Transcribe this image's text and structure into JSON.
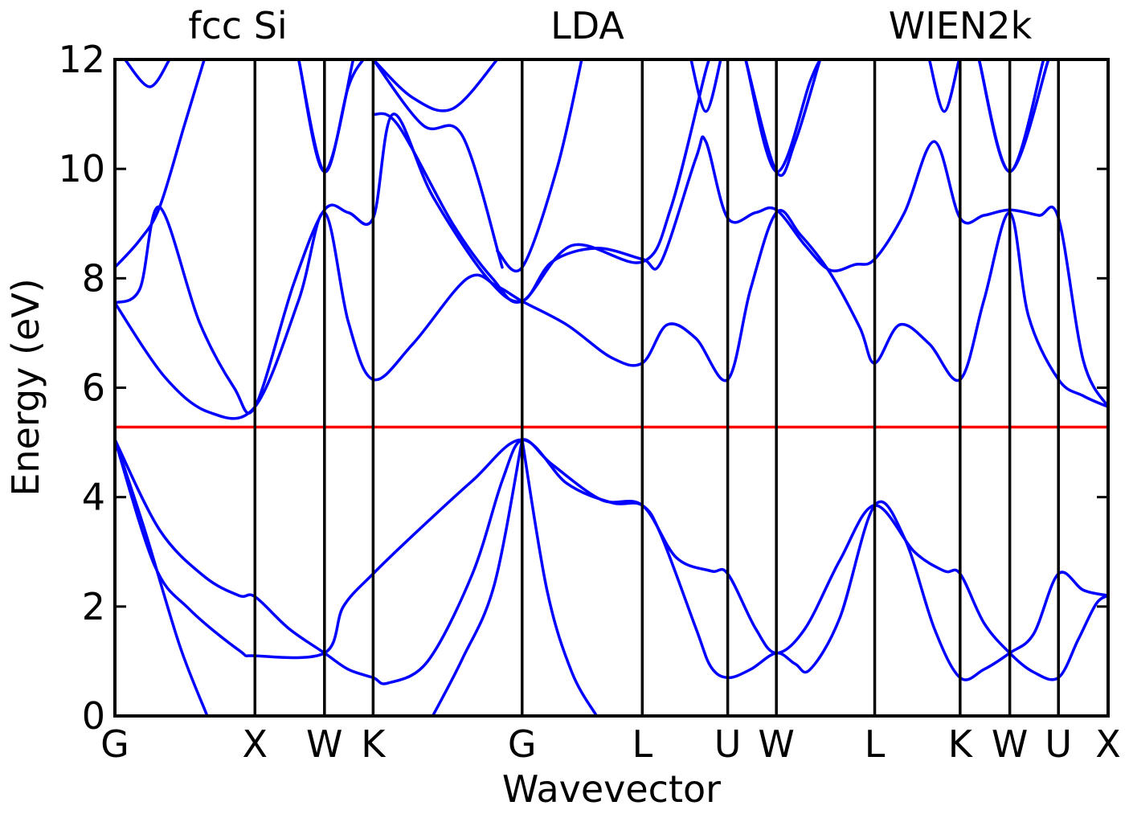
{
  "chart_data": {
    "type": "line",
    "titles": {
      "left": "fcc Si",
      "center": "LDA",
      "right": "WIEN2k"
    },
    "xlabel": "Wavevector",
    "ylabel": "Energy (eV)",
    "ylim": [
      0,
      12
    ],
    "xlim": [
      0,
      10
    ],
    "y_ticks": [
      0,
      2,
      4,
      6,
      8,
      10,
      12
    ],
    "y_tick_labels": [
      "0",
      "2",
      "4",
      "6",
      "8",
      "10",
      "12"
    ],
    "k_points": [
      {
        "label": "G",
        "x": 0
      },
      {
        "label": "X",
        "x": 1.41
      },
      {
        "label": "W",
        "x": 2.11
      },
      {
        "label": "K",
        "x": 2.6
      },
      {
        "label": "G",
        "x": 4.1
      },
      {
        "label": "L",
        "x": 5.31
      },
      {
        "label": "U",
        "x": 6.17
      },
      {
        "label": "W",
        "x": 6.66
      },
      {
        "label": "L",
        "x": 7.65
      },
      {
        "label": "K",
        "x": 8.51
      },
      {
        "label": "W",
        "x": 9.01
      },
      {
        "label": "U",
        "x": 9.5
      },
      {
        "label": "X",
        "x": 10
      }
    ],
    "fermi_level": 5.28,
    "colors": {
      "bands": "#0000ff",
      "fermi": "#ff0000",
      "kline": "#000000"
    },
    "grid": false,
    "series": [
      {
        "values": [
          [
            0,
            5.05
          ],
          [
            0.3,
            3.4
          ],
          [
            0.65,
            1.3
          ],
          [
            0.93,
            0
          ]
        ]
      },
      {
        "values": [
          [
            4.1,
            5.05
          ],
          [
            3.82,
            2.4
          ],
          [
            3.5,
            1.05
          ],
          [
            3.2,
            0
          ]
        ]
      },
      {
        "values": [
          [
            4.1,
            5.05
          ],
          [
            4.35,
            2.3
          ],
          [
            4.6,
            0.8
          ],
          [
            4.85,
            0
          ]
        ]
      },
      {
        "values": [
          [
            0,
            5.05
          ],
          [
            0.45,
            3.4
          ],
          [
            0.9,
            2.55
          ],
          [
            1.25,
            2.2
          ],
          [
            1.41,
            2.18
          ],
          [
            1.75,
            1.6
          ],
          [
            2.11,
            1.15
          ],
          [
            2.35,
            0.85
          ],
          [
            2.6,
            0.7
          ],
          [
            2.75,
            0.6
          ],
          [
            3.15,
            1.0
          ],
          [
            3.6,
            2.6
          ],
          [
            3.9,
            4.3
          ],
          [
            4.1,
            5.05
          ],
          [
            4.4,
            4.6
          ],
          [
            4.9,
            3.95
          ],
          [
            5.31,
            3.85
          ],
          [
            5.65,
            2.9
          ],
          [
            6.0,
            2.65
          ],
          [
            6.17,
            2.6
          ],
          [
            6.45,
            1.6
          ],
          [
            6.66,
            1.15
          ],
          [
            6.95,
            1.6
          ],
          [
            7.3,
            2.85
          ],
          [
            7.65,
            3.85
          ],
          [
            8.05,
            3.0
          ],
          [
            8.35,
            2.65
          ],
          [
            8.51,
            2.6
          ],
          [
            8.75,
            1.7
          ],
          [
            9.01,
            1.15
          ],
          [
            9.25,
            0.8
          ],
          [
            9.5,
            0.7
          ],
          [
            9.7,
            1.4
          ],
          [
            9.88,
            2.05
          ],
          [
            10,
            2.2
          ]
        ]
      },
      {
        "values": [
          [
            0,
            5.05
          ],
          [
            0.4,
            2.75
          ],
          [
            0.75,
            1.95
          ],
          [
            1.25,
            1.2
          ],
          [
            1.41,
            1.1
          ],
          [
            2.11,
            1.15
          ],
          [
            2.3,
            2.0
          ],
          [
            2.6,
            2.6
          ],
          [
            3.0,
            3.3
          ],
          [
            3.6,
            4.3
          ],
          [
            4.1,
            5.05
          ],
          [
            4.55,
            4.25
          ],
          [
            5.0,
            3.9
          ],
          [
            5.31,
            3.85
          ],
          [
            5.5,
            3.3
          ],
          [
            5.85,
            1.6
          ],
          [
            6.0,
            0.9
          ],
          [
            6.17,
            0.7
          ],
          [
            6.4,
            0.85
          ],
          [
            6.66,
            1.15
          ],
          [
            6.85,
            0.95
          ],
          [
            7.0,
            0.85
          ],
          [
            7.3,
            1.8
          ],
          [
            7.65,
            3.85
          ],
          [
            7.95,
            3.25
          ],
          [
            8.25,
            1.6
          ],
          [
            8.51,
            0.7
          ],
          [
            8.75,
            0.85
          ],
          [
            9.01,
            1.15
          ],
          [
            9.25,
            1.5
          ],
          [
            9.5,
            2.6
          ],
          [
            9.75,
            2.3
          ],
          [
            10,
            2.2
          ]
        ]
      },
      {
        "values": [
          [
            0,
            7.55
          ],
          [
            0.5,
            6.2
          ],
          [
            0.95,
            5.55
          ],
          [
            1.41,
            5.65
          ],
          [
            1.85,
            7.6
          ],
          [
            2.11,
            9.2
          ],
          [
            2.35,
            7.2
          ],
          [
            2.6,
            6.15
          ],
          [
            3.0,
            6.8
          ],
          [
            3.55,
            8.0
          ],
          [
            3.85,
            7.85
          ],
          [
            4.1,
            7.58
          ],
          [
            4.55,
            7.15
          ],
          [
            5.0,
            6.55
          ],
          [
            5.31,
            6.45
          ],
          [
            5.56,
            7.15
          ],
          [
            5.85,
            6.9
          ],
          [
            6.17,
            6.15
          ],
          [
            6.4,
            7.8
          ],
          [
            6.66,
            9.2
          ],
          [
            6.9,
            8.8
          ],
          [
            7.2,
            8.1
          ],
          [
            7.5,
            7.1
          ],
          [
            7.65,
            6.45
          ],
          [
            7.9,
            7.15
          ],
          [
            8.2,
            6.8
          ],
          [
            8.51,
            6.15
          ],
          [
            8.75,
            7.6
          ],
          [
            9.01,
            9.2
          ],
          [
            9.2,
            7.3
          ],
          [
            9.5,
            6.15
          ],
          [
            9.75,
            5.85
          ],
          [
            10,
            5.65
          ]
        ]
      },
      {
        "values": [
          [
            0,
            7.55
          ],
          [
            0.25,
            7.8
          ],
          [
            0.45,
            9.3
          ],
          [
            0.85,
            7.2
          ],
          [
            1.2,
            6.0
          ],
          [
            1.41,
            5.65
          ],
          [
            1.8,
            7.9
          ],
          [
            2.11,
            9.25
          ],
          [
            2.35,
            9.2
          ],
          [
            2.6,
            9.1
          ],
          [
            2.8,
            11.0
          ],
          [
            3.2,
            9.5
          ],
          [
            3.75,
            8.0
          ],
          [
            4.1,
            7.58
          ],
          [
            4.4,
            8.3
          ],
          [
            4.85,
            8.55
          ],
          [
            5.31,
            8.35
          ],
          [
            5.5,
            8.3
          ],
          [
            5.85,
            10.2
          ],
          [
            5.95,
            10.5
          ],
          [
            6.17,
            9.1
          ],
          [
            6.45,
            9.2
          ],
          [
            6.66,
            9.25
          ],
          [
            6.95,
            8.6
          ],
          [
            7.2,
            8.15
          ],
          [
            7.45,
            8.25
          ],
          [
            7.65,
            8.35
          ],
          [
            7.95,
            9.2
          ],
          [
            8.25,
            10.5
          ],
          [
            8.51,
            9.1
          ],
          [
            8.75,
            9.15
          ],
          [
            9.01,
            9.25
          ],
          [
            9.3,
            9.15
          ],
          [
            9.5,
            9.1
          ],
          [
            9.75,
            6.5
          ],
          [
            10,
            5.65
          ]
        ]
      },
      {
        "values": [
          [
            0,
            8.2
          ],
          [
            0.25,
            8.7
          ],
          [
            0.45,
            9.3
          ],
          [
            0.7,
            10.8
          ],
          [
            0.9,
            12
          ]
        ]
      },
      {
        "values": [
          [
            2.6,
            11.0
          ],
          [
            2.85,
            10.8
          ],
          [
            3.4,
            9.0
          ],
          [
            3.8,
            8.0
          ],
          [
            4.1,
            7.58
          ],
          [
            4.6,
            8.6
          ],
          [
            5.31,
            8.3
          ],
          [
            5.6,
            9.3
          ],
          [
            5.95,
            11.8
          ],
          [
            6.0,
            12
          ]
        ]
      },
      {
        "values": [
          [
            3.85,
            8.5
          ],
          [
            4.1,
            8.2
          ],
          [
            4.45,
            10.0
          ],
          [
            4.7,
            12
          ]
        ]
      },
      {
        "values": [
          [
            1.85,
            12
          ],
          [
            2.11,
            9.95
          ],
          [
            2.35,
            11.5
          ],
          [
            2.5,
            12
          ]
        ]
      },
      {
        "values": [
          [
            1.85,
            12
          ],
          [
            2.11,
            9.95
          ],
          [
            2.4,
            12
          ]
        ]
      },
      {
        "values": [
          [
            6.35,
            12
          ],
          [
            6.66,
            9.95
          ],
          [
            7.0,
            11.6
          ],
          [
            7.1,
            12
          ]
        ]
      },
      {
        "values": [
          [
            6.35,
            12
          ],
          [
            6.66,
            9.95
          ],
          [
            6.85,
            10.5
          ],
          [
            7.1,
            12
          ]
        ]
      },
      {
        "values": [
          [
            8.7,
            12
          ],
          [
            9.01,
            9.95
          ],
          [
            9.4,
            12
          ]
        ]
      },
      {
        "values": [
          [
            8.7,
            12
          ],
          [
            9.01,
            9.95
          ],
          [
            9.35,
            12
          ]
        ]
      },
      {
        "values": [
          [
            2.6,
            12
          ],
          [
            3.0,
            11.3
          ],
          [
            3.4,
            11.1
          ],
          [
            3.85,
            12
          ]
        ]
      },
      {
        "values": [
          [
            2.6,
            12
          ],
          [
            3.1,
            10.8
          ],
          [
            3.5,
            10.6
          ],
          [
            3.9,
            8.2
          ]
        ]
      },
      {
        "values": [
          [
            0.1,
            12
          ],
          [
            0.35,
            11.5
          ],
          [
            0.55,
            12
          ]
        ]
      },
      {
        "values": [
          [
            5.8,
            12
          ],
          [
            5.95,
            11.05
          ],
          [
            6.1,
            12
          ]
        ]
      },
      {
        "values": [
          [
            8.2,
            12
          ],
          [
            8.35,
            11.05
          ],
          [
            8.5,
            12
          ]
        ]
      }
    ]
  }
}
